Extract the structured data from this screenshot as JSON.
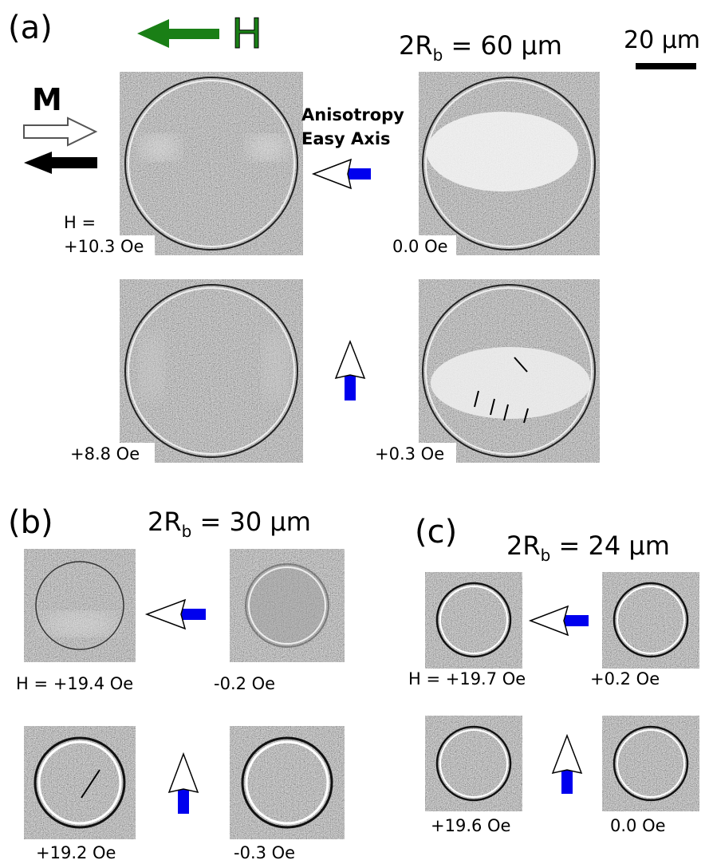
{
  "panel_a": {
    "label": "(a)",
    "field_symbol": "H",
    "diameter": {
      "main": "2R",
      "sub": "b",
      "rest": " = 60 µm"
    },
    "scale_bar": "20 µm",
    "magnetization": "M",
    "axis_label": [
      "Anisotropy",
      "Easy Axis"
    ],
    "field_prefix": "H =",
    "fields": [
      "+10.3 Oe",
      "0.0 Oe",
      "+8.8 Oe",
      "+0.3 Oe"
    ]
  },
  "panel_b": {
    "label": "(b)",
    "diameter": {
      "main": "2R",
      "sub": "b",
      "rest": " = 30 µm"
    },
    "fields": [
      "H = +19.4 Oe",
      "-0.2 Oe",
      "+19.2 Oe",
      "-0.3 Oe"
    ]
  },
  "panel_c": {
    "label": "(c)",
    "diameter": {
      "main": "2R",
      "sub": "b",
      "rest": " = 24 µm"
    },
    "fields": [
      "H = +19.7 Oe",
      "+0.2 Oe",
      "+19.6 Oe",
      "0.0 Oe"
    ]
  }
}
